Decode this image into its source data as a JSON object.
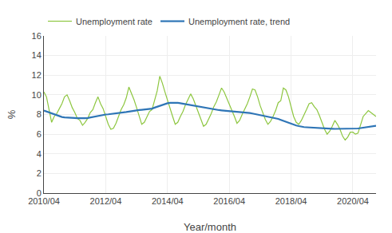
{
  "chart_data": {
    "type": "line",
    "xlabel": "Year/month",
    "ylabel": "%",
    "categories": [
      "2010/04",
      null,
      null,
      null,
      null,
      null,
      null,
      null,
      null,
      null,
      null,
      null,
      null,
      null,
      null,
      null,
      null,
      null,
      null,
      null,
      null,
      null,
      null,
      null,
      "2012/04",
      null,
      null,
      null,
      null,
      null,
      null,
      null,
      null,
      null,
      null,
      null,
      null,
      null,
      null,
      null,
      null,
      null,
      null,
      null,
      null,
      null,
      null,
      null,
      "2014/04",
      null,
      null,
      null,
      null,
      null,
      null,
      null,
      null,
      null,
      null,
      null,
      null,
      null,
      null,
      null,
      null,
      null,
      null,
      null,
      null,
      null,
      null,
      null,
      "2016/04",
      null,
      null,
      null,
      null,
      null,
      null,
      null,
      null,
      null,
      null,
      null,
      null,
      null,
      null,
      null,
      null,
      null,
      null,
      null,
      null,
      null,
      null,
      null,
      "2018/04",
      null,
      null,
      null,
      null,
      null,
      null,
      null,
      null,
      null,
      null,
      null,
      null,
      null,
      null,
      null,
      null,
      null,
      null,
      null,
      null,
      null,
      null,
      null,
      "2020/04",
      null,
      null,
      null,
      null,
      null,
      null,
      null,
      null,
      null
    ],
    "series": [
      {
        "name": "Unemployment rate",
        "color": "#8dc63f",
        "values": [
          10.3,
          9.8,
          8.5,
          7.2,
          7.8,
          8.1,
          8.6,
          9.1,
          9.8,
          10.0,
          9.4,
          8.7,
          8.2,
          7.6,
          7.4,
          6.9,
          7.2,
          7.6,
          8.2,
          8.5,
          9.2,
          9.8,
          9.1,
          8.6,
          7.8,
          7.0,
          6.5,
          6.6,
          7.1,
          7.8,
          8.5,
          9.0,
          9.7,
          10.8,
          10.2,
          9.5,
          8.7,
          7.8,
          7.0,
          7.2,
          7.7,
          8.3,
          8.5,
          9.5,
          10.4,
          11.9,
          11.2,
          10.3,
          9.4,
          8.5,
          7.8,
          7.0,
          7.2,
          7.8,
          8.3,
          9.0,
          9.5,
          10.1,
          9.6,
          8.9,
          8.2,
          7.5,
          6.8,
          7.0,
          7.5,
          8.1,
          8.8,
          9.3,
          10.0,
          10.7,
          10.3,
          9.7,
          9.0,
          8.4,
          7.8,
          7.1,
          7.4,
          8.0,
          8.5,
          9.1,
          9.8,
          10.6,
          10.5,
          9.8,
          8.9,
          8.2,
          7.5,
          7.0,
          7.3,
          7.8,
          8.4,
          9.2,
          9.4,
          10.7,
          10.5,
          9.8,
          8.7,
          7.8,
          7.2,
          7.0,
          7.4,
          7.9,
          8.5,
          9.1,
          9.2,
          8.8,
          8.5,
          7.9,
          7.2,
          6.5,
          6.0,
          6.3,
          6.8,
          7.4,
          7.0,
          6.5,
          5.8,
          5.4,
          5.7,
          6.2,
          6.2,
          6.0,
          6.1,
          7.0,
          7.8,
          8.1,
          8.4,
          8.2,
          8.0,
          7.8
        ]
      },
      {
        "name": "Unemployment rate, trend",
        "color": "#2e75b6",
        "values": [
          8.4,
          8.3,
          8.2,
          8.1,
          8.0,
          7.9,
          7.8,
          7.75,
          7.7,
          7.7,
          7.68,
          7.65,
          7.65,
          7.62,
          7.6,
          7.6,
          7.62,
          7.65,
          7.7,
          7.75,
          7.8,
          7.9,
          7.95,
          8.0,
          8.0,
          8.02,
          8.05,
          8.05,
          8.08,
          8.1,
          8.15,
          8.2,
          8.25,
          8.3,
          8.35,
          8.4,
          8.42,
          8.45,
          8.48,
          8.5,
          8.52,
          8.55,
          8.6,
          8.7,
          8.8,
          8.9,
          9.0,
          9.1,
          9.15,
          9.18,
          9.2,
          9.2,
          9.18,
          9.15,
          9.1,
          9.05,
          9.0,
          8.95,
          8.9,
          8.85,
          8.8,
          8.75,
          8.7,
          8.65,
          8.6,
          8.55,
          8.5,
          8.48,
          8.45,
          8.42,
          8.4,
          8.38,
          8.35,
          8.32,
          8.3,
          8.28,
          8.25,
          8.22,
          8.2,
          8.18,
          8.15,
          8.1,
          8.05,
          8.0,
          7.95,
          7.9,
          7.85,
          7.8,
          7.75,
          7.7,
          7.62,
          7.55,
          7.45,
          7.35,
          7.25,
          7.15,
          7.05,
          6.95,
          6.88,
          6.82,
          6.75,
          6.72,
          6.7,
          6.68,
          6.65,
          6.63,
          6.62,
          6.6,
          6.6,
          6.58,
          6.57,
          6.56,
          6.55,
          6.54,
          6.54,
          6.53,
          6.53,
          6.52,
          6.52,
          6.52,
          6.53,
          6.55,
          6.58,
          6.62,
          6.66,
          6.7,
          6.74,
          6.78,
          6.82,
          6.85
        ]
      }
    ],
    "ylim": [
      0,
      16
    ],
    "yticks": [
      0,
      2,
      4,
      6,
      8,
      10,
      12,
      14,
      16
    ],
    "grid": true,
    "legend": "top"
  }
}
